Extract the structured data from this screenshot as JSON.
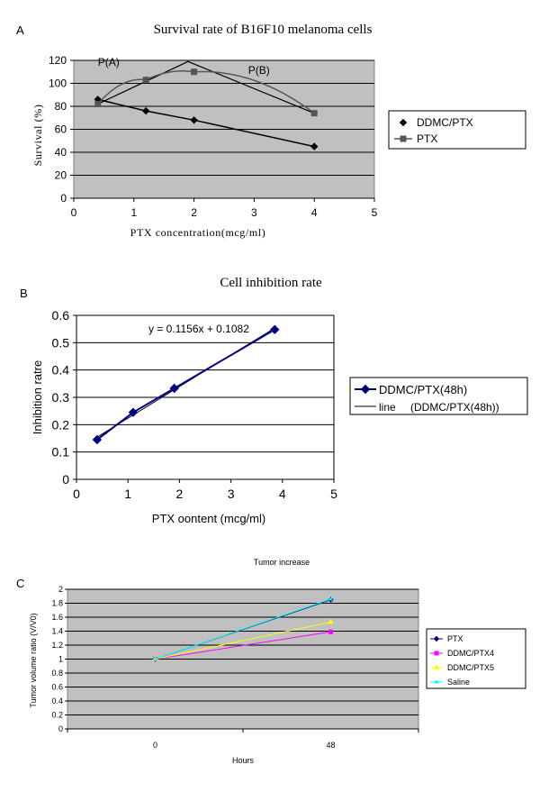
{
  "chart_data": [
    {
      "panel": "A",
      "type": "line",
      "title": "Survival rate of B16F10 melanoma cells",
      "xlabel": "PTX concentration(mcg/ml)",
      "ylabel": "Survival (%)",
      "xlim": [
        0,
        5
      ],
      "ylim": [
        0,
        120
      ],
      "xticks": [
        "0",
        "1",
        "2",
        "3",
        "4",
        "5"
      ],
      "yticks": [
        "0",
        "20",
        "40",
        "60",
        "80",
        "100",
        "120"
      ],
      "grid": "horizontal",
      "legend_position": "right",
      "series": [
        {
          "name": "DDMC/PTX",
          "color": "#000000",
          "marker": "diamond",
          "x": [
            0.4,
            1.2,
            2.0,
            4.0
          ],
          "y": [
            86,
            76,
            68,
            45
          ]
        },
        {
          "name": "PTX",
          "color": "#555555",
          "marker": "square",
          "x": [
            0.4,
            1.2,
            2.0,
            4.0
          ],
          "y": [
            82,
            103,
            110,
            74
          ]
        }
      ],
      "annotations": [
        {
          "text": "P(A)",
          "x": 0.4,
          "y": 113
        },
        {
          "text": "P(B)",
          "x": 2.9,
          "y": 106
        }
      ],
      "peak_line": {
        "x": [
          0.4,
          1.9,
          4.0
        ],
        "y": [
          82,
          119,
          74
        ]
      }
    },
    {
      "panel": "B",
      "type": "line",
      "title": "Cell inhibition rate",
      "xlabel": "PTX oontent (mcg/ml)",
      "ylabel": "Inhibition ratre",
      "xlim": [
        0,
        5
      ],
      "ylim": [
        0,
        0.6
      ],
      "xticks": [
        "0",
        "1",
        "2",
        "3",
        "4",
        "5"
      ],
      "yticks": [
        "0",
        "0.1",
        "0.2",
        "0.3",
        "0.4",
        "0.5",
        "0.6"
      ],
      "grid": "horizontal",
      "legend_position": "right",
      "series": [
        {
          "name": "DDMC/PTX(48h)",
          "color": "#000080",
          "marker": "diamond",
          "x": [
            0.4,
            1.1,
            1.9,
            3.85
          ],
          "y": [
            0.145,
            0.245,
            0.333,
            0.548
          ]
        }
      ],
      "trendline": {
        "name": "line",
        "name_suffix": "(DDMC/PTX(48h))",
        "color": "#000000",
        "slope": 0.1156,
        "intercept": 0.1082,
        "x": [
          0.4,
          3.85
        ]
      },
      "equation": "y = 0.1156x + 0.1082"
    },
    {
      "panel": "C",
      "type": "line",
      "title": "Tumor increase",
      "xlabel": "Hours",
      "ylabel": "Tumor volume ratio (V/V0)",
      "categories": [
        "0",
        "48"
      ],
      "ylim": [
        0,
        2
      ],
      "yticks": [
        "0",
        "0.2",
        "0.4",
        "0.6",
        "0.8",
        "1",
        "1.2",
        "1.4",
        "1.6",
        "1.8",
        "2"
      ],
      "grid": "horizontal",
      "legend_position": "right",
      "series": [
        {
          "name": "PTX",
          "color": "#000080",
          "marker": "diamond",
          "values": [
            1.0,
            1.85
          ]
        },
        {
          "name": "DDMC/PTX4",
          "color": "#ff00ff",
          "marker": "square",
          "values": [
            1.0,
            1.39
          ]
        },
        {
          "name": "DDMC/PTX5",
          "color": "#ffff00",
          "marker": "triangle",
          "values": [
            1.0,
            1.53
          ]
        },
        {
          "name": "Saline",
          "color": "#00ffff",
          "marker": "x",
          "values": [
            1.0,
            1.86
          ]
        }
      ]
    }
  ],
  "panels": {
    "a": "A",
    "b": "B",
    "c": "C"
  }
}
